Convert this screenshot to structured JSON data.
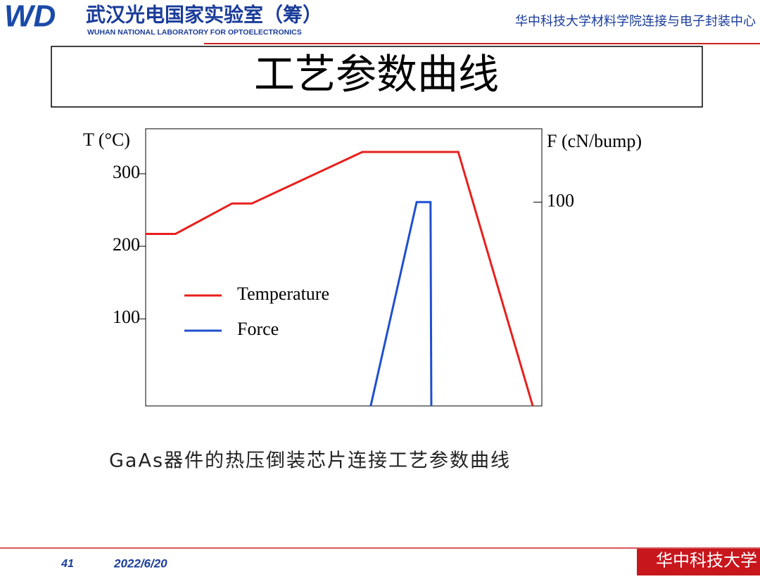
{
  "header": {
    "lab_cn": "武汉光电国家实验室（筹）",
    "lab_en": "WUHAN NATIONAL LABORATORY FOR OPTOELECTRONICS",
    "org": "华中科技大学材料学院连接与电子封装中心"
  },
  "title": "工艺参数曲线",
  "chart_data": {
    "type": "line",
    "y_label": "T (°C)",
    "y2_label": "F (cN/bump)",
    "xlim": [
      0,
      100
    ],
    "ylim": [
      -20,
      362
    ],
    "yticks": [
      100,
      200,
      300
    ],
    "y2lim": [
      0,
      136
    ],
    "y2ticks": [
      100
    ],
    "legend": "left",
    "series": [
      {
        "name": "Temperature",
        "color": "#e8201c",
        "x": [
          0,
          7.5,
          21.8,
          26.8,
          54.7,
          78.9,
          97.7
        ],
        "values": [
          217,
          217,
          259,
          259,
          330,
          330,
          -20
        ]
      },
      {
        "name": "Force",
        "color": "#1f4fd0",
        "axis": "y2",
        "x": [
          56.8,
          68.4,
          71.9,
          72.1
        ],
        "values": [
          0,
          100,
          100,
          0
        ]
      }
    ]
  },
  "caption": "GaAs器件的热压倒装芯片连接工艺参数曲线",
  "footer": {
    "page": "41",
    "date": "2022/6/20",
    "univ": "华中科技大学"
  }
}
